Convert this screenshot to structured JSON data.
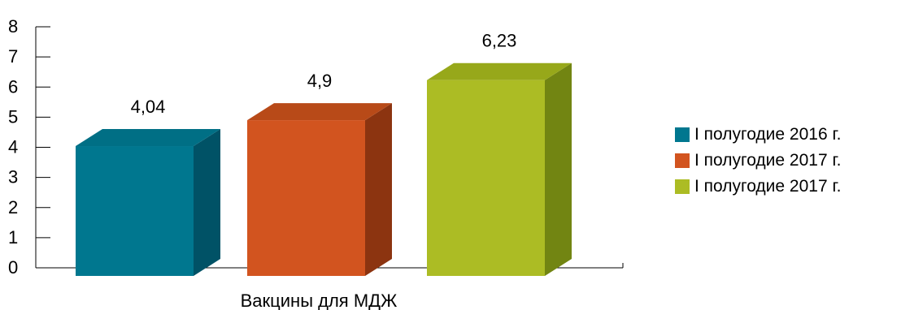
{
  "chart_data": {
    "type": "bar",
    "categories": [
      "Вакцины для МДЖ"
    ],
    "series": [
      {
        "name": "I  полугодие 2016 г.",
        "values": [
          4.04
        ],
        "color": "#00778f",
        "side_color": "#005266",
        "top_color": "#006f85"
      },
      {
        "name": "I  полугодие 2017 г.",
        "values": [
          4.9
        ],
        "color": "#d2541f",
        "side_color": "#8c3410",
        "top_color": "#b84a18"
      },
      {
        "name": "I  полугодие 2017 г.",
        "values": [
          6.23
        ],
        "color": "#acbc24",
        "side_color": "#728512",
        "top_color": "#97a81a"
      }
    ],
    "data_labels": [
      "4,04",
      "4,9",
      "6,23"
    ],
    "ylim": [
      0,
      8
    ],
    "yticks": [
      "0",
      "1",
      "2",
      "3",
      "4",
      "5",
      "6",
      "7",
      "8"
    ],
    "xlabel": "",
    "ylabel": "",
    "title": "",
    "legend_position": "right",
    "grid": false
  }
}
